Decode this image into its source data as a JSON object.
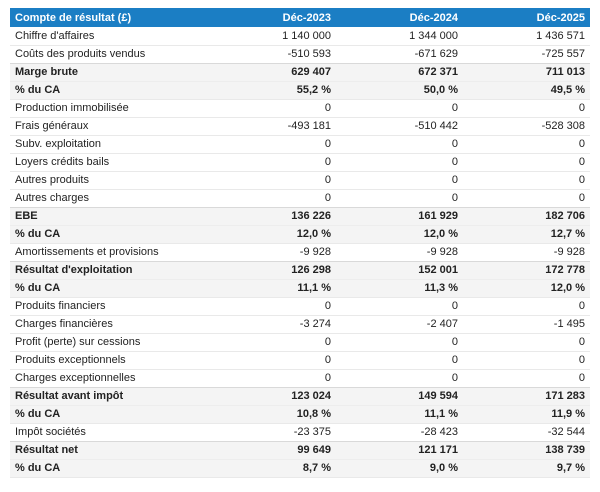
{
  "table": {
    "header": {
      "label": "Compte de résultat (£)",
      "columns": [
        "Déc-2023",
        "Déc-2024",
        "Déc-2025"
      ]
    },
    "rows": [
      {
        "label": "Chiffre d'affaires",
        "values": [
          "1 140 000",
          "1 344 000",
          "1 436 571"
        ],
        "style": "normal"
      },
      {
        "label": "Coûts des produits vendus",
        "values": [
          "-510 593",
          "-671 629",
          "-725 557"
        ],
        "style": "normal"
      },
      {
        "label": "Marge brute",
        "values": [
          "629 407",
          "672 371",
          "711 013"
        ],
        "style": "subtotal"
      },
      {
        "label": "% du CA",
        "values": [
          "55,2 %",
          "50,0 %",
          "49,5 %"
        ],
        "style": "subtotal"
      },
      {
        "label": "Production immobilisée",
        "values": [
          "0",
          "0",
          "0"
        ],
        "style": "normal"
      },
      {
        "label": "Frais généraux",
        "values": [
          "-493 181",
          "-510 442",
          "-528 308"
        ],
        "style": "normal"
      },
      {
        "label": "Subv. exploitation",
        "values": [
          "0",
          "0",
          "0"
        ],
        "style": "normal"
      },
      {
        "label": "Loyers crédits bails",
        "values": [
          "0",
          "0",
          "0"
        ],
        "style": "normal"
      },
      {
        "label": "Autres produits",
        "values": [
          "0",
          "0",
          "0"
        ],
        "style": "normal"
      },
      {
        "label": "Autres charges",
        "values": [
          "0",
          "0",
          "0"
        ],
        "style": "normal"
      },
      {
        "label": "EBE",
        "values": [
          "136 226",
          "161 929",
          "182 706"
        ],
        "style": "subtotal"
      },
      {
        "label": "% du CA",
        "values": [
          "12,0 %",
          "12,0 %",
          "12,7 %"
        ],
        "style": "subtotal"
      },
      {
        "label": "Amortissements et provisions",
        "values": [
          "-9 928",
          "-9 928",
          "-9 928"
        ],
        "style": "normal"
      },
      {
        "label": "Résultat d'exploitation",
        "values": [
          "126 298",
          "152 001",
          "172 778"
        ],
        "style": "subtotal"
      },
      {
        "label": "% du CA",
        "values": [
          "11,1 %",
          "11,3 %",
          "12,0 %"
        ],
        "style": "subtotal"
      },
      {
        "label": "Produits financiers",
        "values": [
          "0",
          "0",
          "0"
        ],
        "style": "normal"
      },
      {
        "label": "Charges financières",
        "values": [
          "-3 274",
          "-2 407",
          "-1 495"
        ],
        "style": "normal"
      },
      {
        "label": "Profit (perte) sur cessions",
        "values": [
          "0",
          "0",
          "0"
        ],
        "style": "normal"
      },
      {
        "label": "Produits exceptionnels",
        "values": [
          "0",
          "0",
          "0"
        ],
        "style": "normal"
      },
      {
        "label": "Charges exceptionnelles",
        "values": [
          "0",
          "0",
          "0"
        ],
        "style": "normal"
      },
      {
        "label": "Résultat avant impôt",
        "values": [
          "123 024",
          "149 594",
          "171 283"
        ],
        "style": "subtotal"
      },
      {
        "label": "% du CA",
        "values": [
          "10,8 %",
          "11,1 %",
          "11,9 %"
        ],
        "style": "subtotal"
      },
      {
        "label": "Impôt sociétés",
        "values": [
          "-23 375",
          "-28 423",
          "-32 544"
        ],
        "style": "normal"
      },
      {
        "label": "Résultat net",
        "values": [
          "99 649",
          "121 171",
          "138 739"
        ],
        "style": "subtotal"
      },
      {
        "label": "% du CA",
        "values": [
          "8,7 %",
          "9,0 %",
          "9,7 %"
        ],
        "style": "subtotal"
      }
    ],
    "colors": {
      "header_bg": "#1b7ec4",
      "header_text": "#ffffff",
      "subtotal_bg": "#f4f4f4",
      "row_border": "#e9e9e9",
      "text": "#222222"
    }
  }
}
